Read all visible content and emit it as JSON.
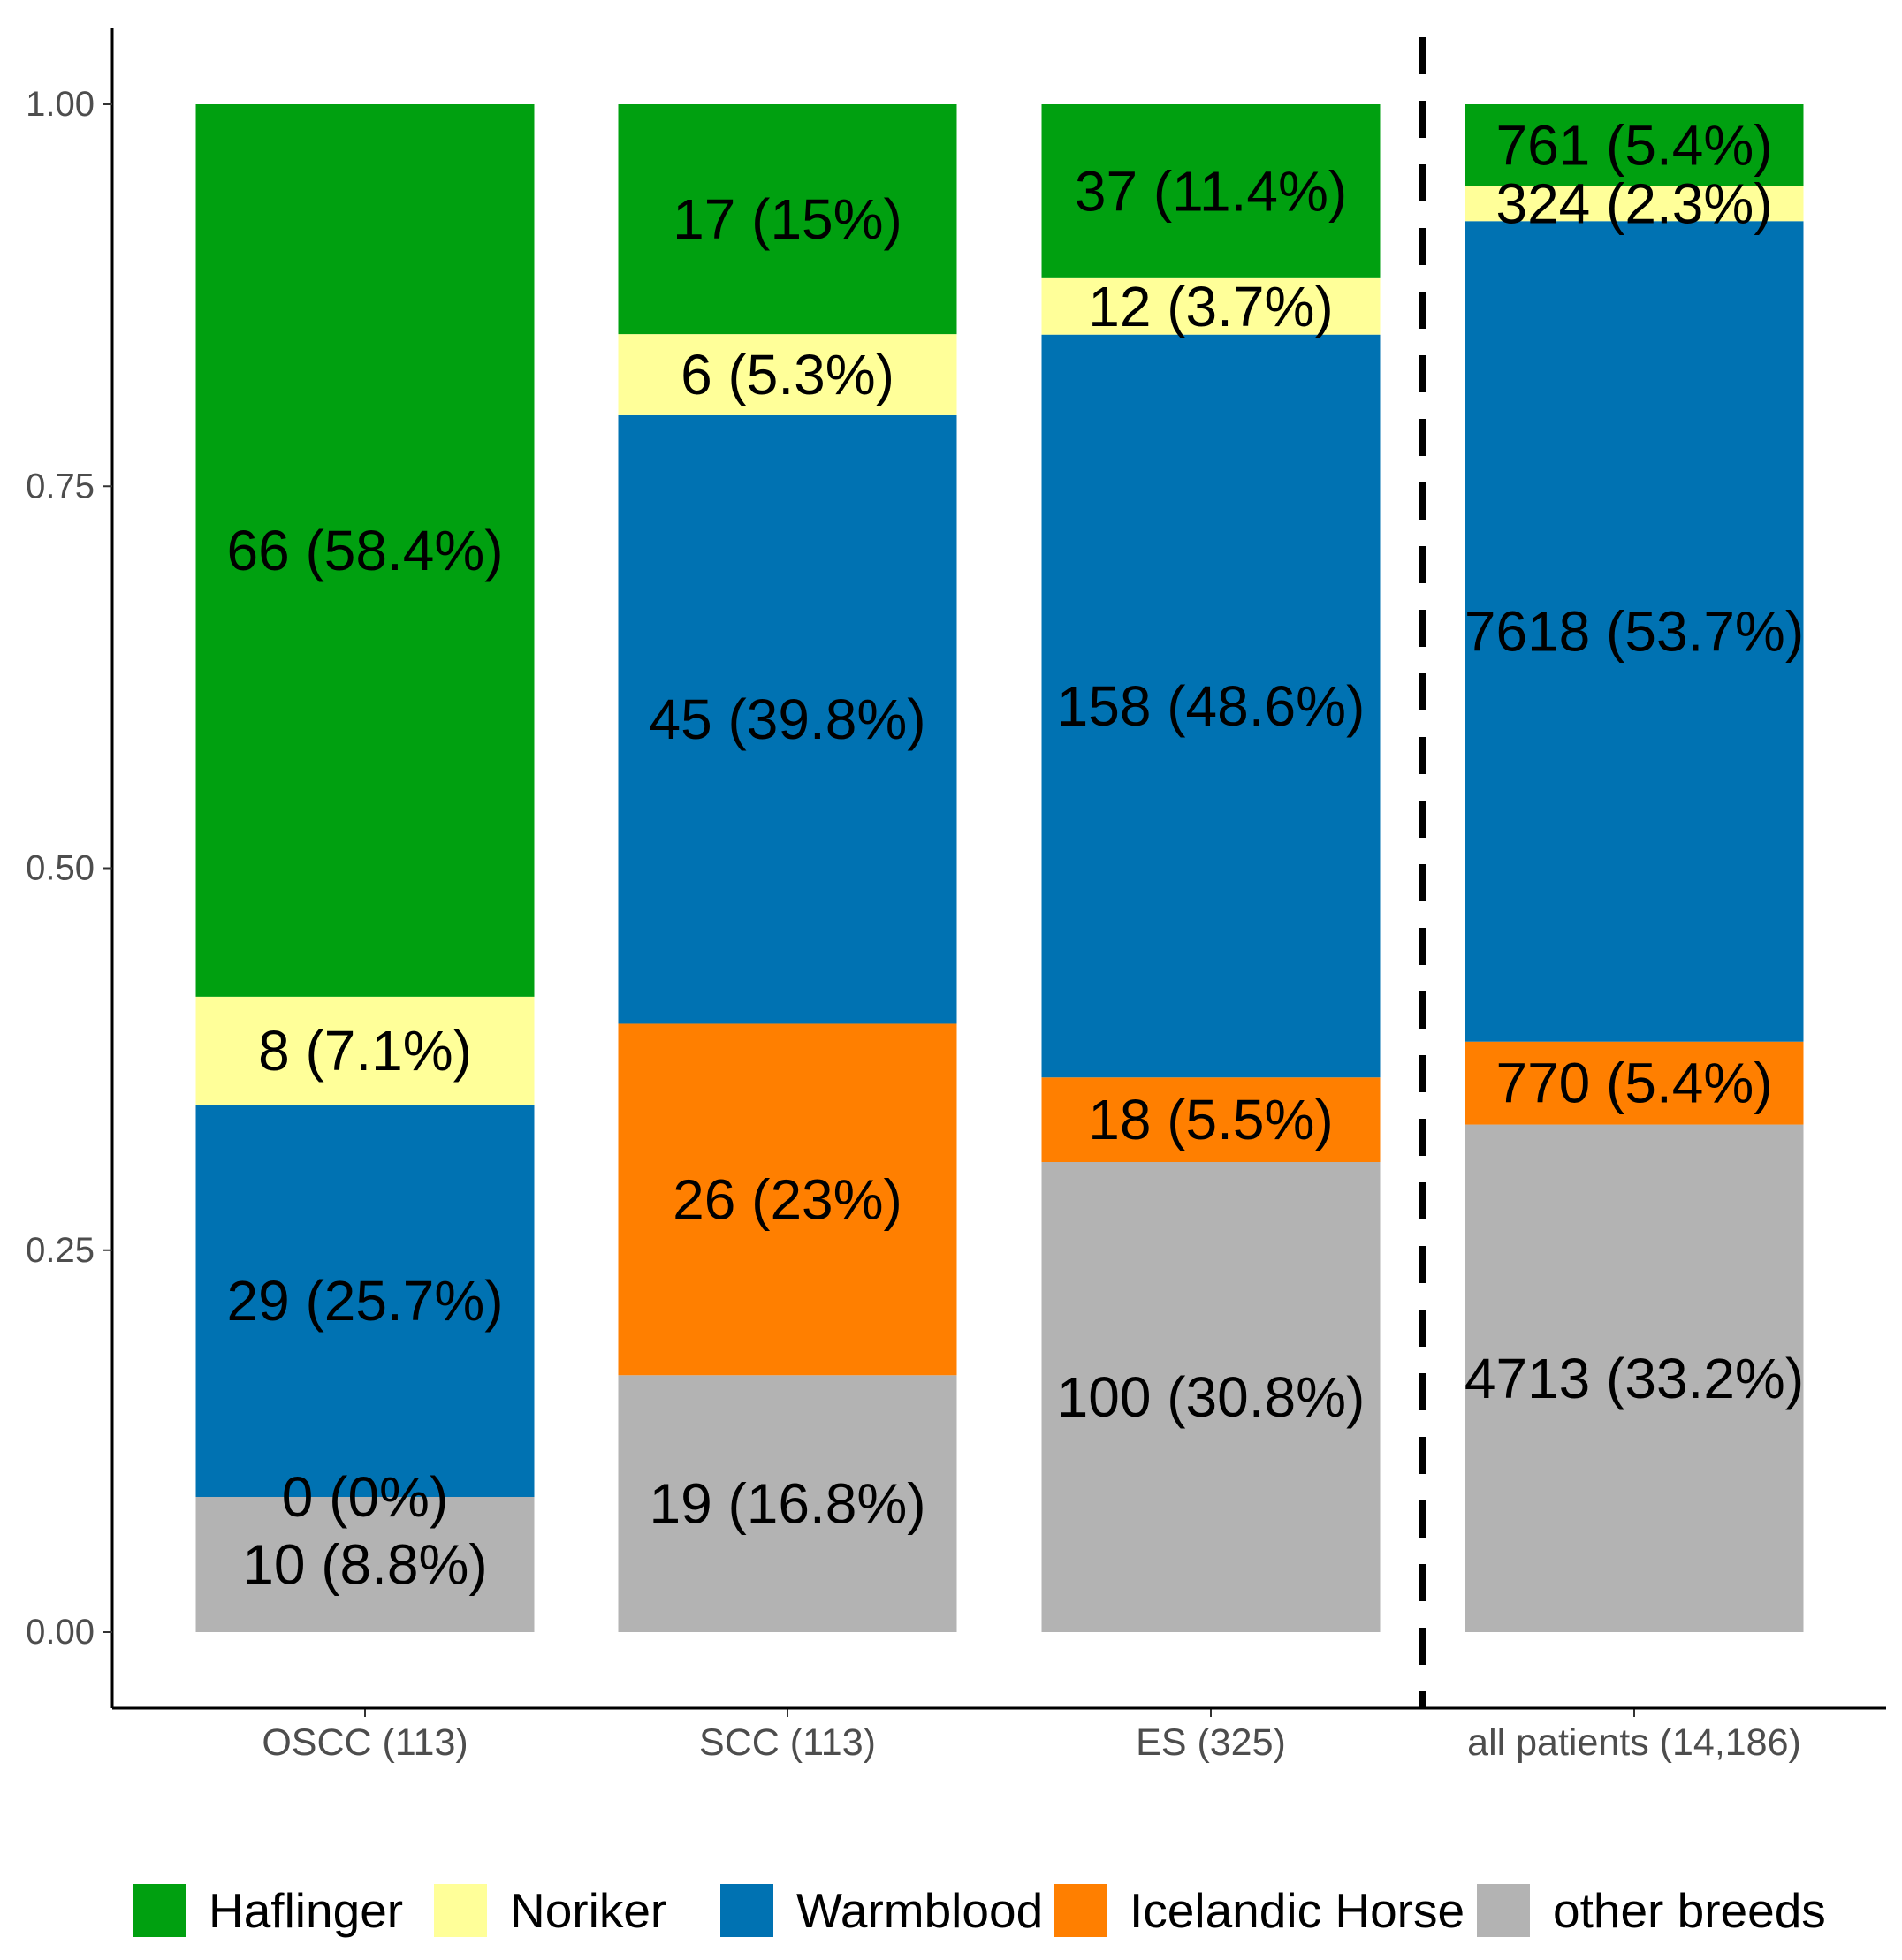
{
  "chart_data": {
    "type": "bar",
    "stacked": true,
    "normalized": true,
    "title": "",
    "xlabel": "",
    "ylabel": "",
    "ylim": [
      -0.05,
      1.05
    ],
    "yticks": [
      "0.00",
      "0.25",
      "0.50",
      "0.75",
      "1.00"
    ],
    "ytick_values": [
      0,
      0.25,
      0.5,
      0.75,
      1.0
    ],
    "categories": [
      "OSCC (113)",
      "SCC (113)",
      "ES (325)",
      "all patients (14,186)"
    ],
    "divider_after_category": 2,
    "legend_position": "bottom",
    "series": [
      {
        "name": "other breeds",
        "color": "#b3b3b3",
        "values": [
          10,
          19,
          100,
          4713
        ],
        "labels": [
          "10 (8.8%)",
          "19 (16.8%)",
          "100 (30.8%)",
          "4713 (33.2%)"
        ]
      },
      {
        "name": "Icelandic Horse",
        "color": "#ff7f00",
        "values": [
          0,
          26,
          18,
          770
        ],
        "labels": [
          "0 (0%)",
          "26 (23%)",
          "18 (5.5%)",
          "770 (5.4%)"
        ]
      },
      {
        "name": "Warmblood",
        "color": "#0072b2",
        "values": [
          29,
          45,
          158,
          7618
        ],
        "labels": [
          "29 (25.7%)",
          "45 (39.8%)",
          "158 (48.6%)",
          "7618 (53.7%)"
        ]
      },
      {
        "name": "Noriker",
        "color": "#ffff99",
        "values": [
          8,
          6,
          12,
          324
        ],
        "labels": [
          "8 (7.1%)",
          "6 (5.3%)",
          "12 (3.7%)",
          "324 (2.3%)"
        ]
      },
      {
        "name": "Haflinger",
        "color": "#00a010",
        "values": [
          66,
          17,
          37,
          761
        ],
        "labels": [
          "66 (58.4%)",
          "17 (15%)",
          "37 (11.4%)",
          "761 (5.4%)"
        ]
      }
    ],
    "legend_order": [
      "Haflinger",
      "Noriker",
      "Warmblood",
      "Icelandic Horse",
      "other breeds"
    ]
  }
}
